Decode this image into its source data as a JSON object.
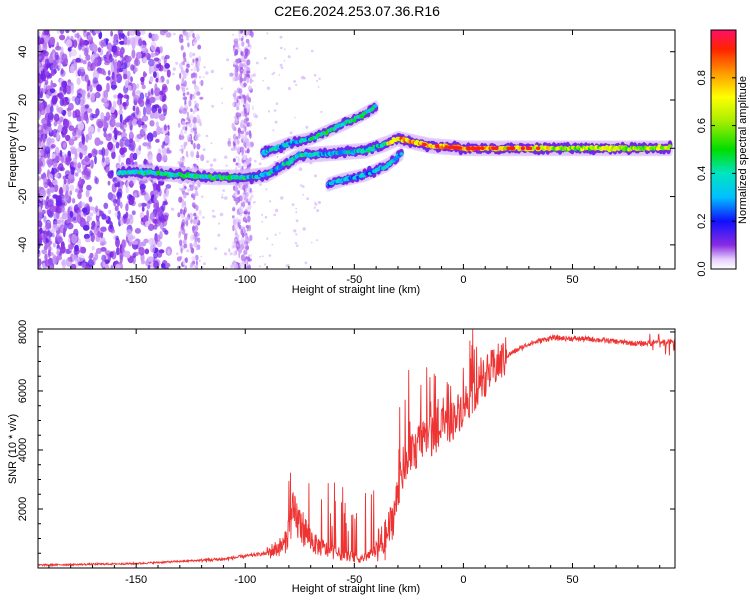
{
  "title": "C2E6.2024.253.07.36.R16",
  "chart_data": [
    {
      "type": "heatmap",
      "xlabel": "Height of straight line (km)",
      "ylabel": "Frequency (Hz)",
      "xlim": [
        -195,
        97
      ],
      "ylim": [
        -50,
        49
      ],
      "xticks": [
        -150,
        -100,
        -50,
        0,
        50
      ],
      "yticks": [
        -40,
        -20,
        0,
        20,
        40
      ],
      "colorbar": {
        "label": "Normalized spectral amplitude",
        "range": [
          0,
          1
        ],
        "ticks": [
          0.0,
          0.2,
          0.4,
          0.6,
          0.8
        ]
      },
      "main_trace": {
        "description_x": [
          -158,
          -145,
          -130,
          -115,
          -100,
          -90,
          -75,
          -60,
          -45,
          -35,
          -30,
          -25,
          -15,
          0,
          20,
          50,
          95
        ],
        "y": [
          -10,
          -10,
          -11,
          -12,
          -12,
          -11,
          -3,
          -2,
          -1,
          2,
          4,
          3,
          1,
          0,
          0,
          0,
          0
        ]
      },
      "branch_upper": {
        "x": [
          -92,
          -80,
          -70,
          -60,
          -50,
          -40
        ],
        "y": [
          -2,
          2,
          4,
          8,
          12,
          17
        ]
      },
      "branch_lower": {
        "x": [
          -62,
          -55,
          -45,
          -35,
          -28
        ],
        "y": [
          -15,
          -13,
          -11,
          -7,
          -2
        ]
      }
    },
    {
      "type": "line",
      "xlabel": "Height of straight line (km)",
      "ylabel": "SNR (10 * v/v)",
      "xlim": [
        -195,
        97
      ],
      "ylim": [
        0,
        8100
      ],
      "xticks": [
        -150,
        -100,
        -50,
        0,
        50
      ],
      "yticks": [
        2000,
        4000,
        6000,
        8000
      ],
      "series": [
        {
          "color": "#ee3333",
          "envelope_x": [
            -195,
            -150,
            -110,
            -90,
            -82,
            -78,
            -72,
            -68,
            -62,
            -58,
            -52,
            -47,
            -42,
            -36,
            -32,
            -28,
            -24,
            -20,
            -12,
            -5,
            0,
            10,
            20,
            30,
            40,
            60,
            80,
            97
          ],
          "envelope_y": [
            100,
            150,
            300,
            500,
            800,
            1800,
            1200,
            800,
            600,
            500,
            400,
            300,
            500,
            900,
            1800,
            3200,
            3800,
            4200,
            4600,
            5000,
            5500,
            6500,
            7200,
            7600,
            7800,
            7750,
            7600,
            7700
          ]
        }
      ]
    }
  ]
}
